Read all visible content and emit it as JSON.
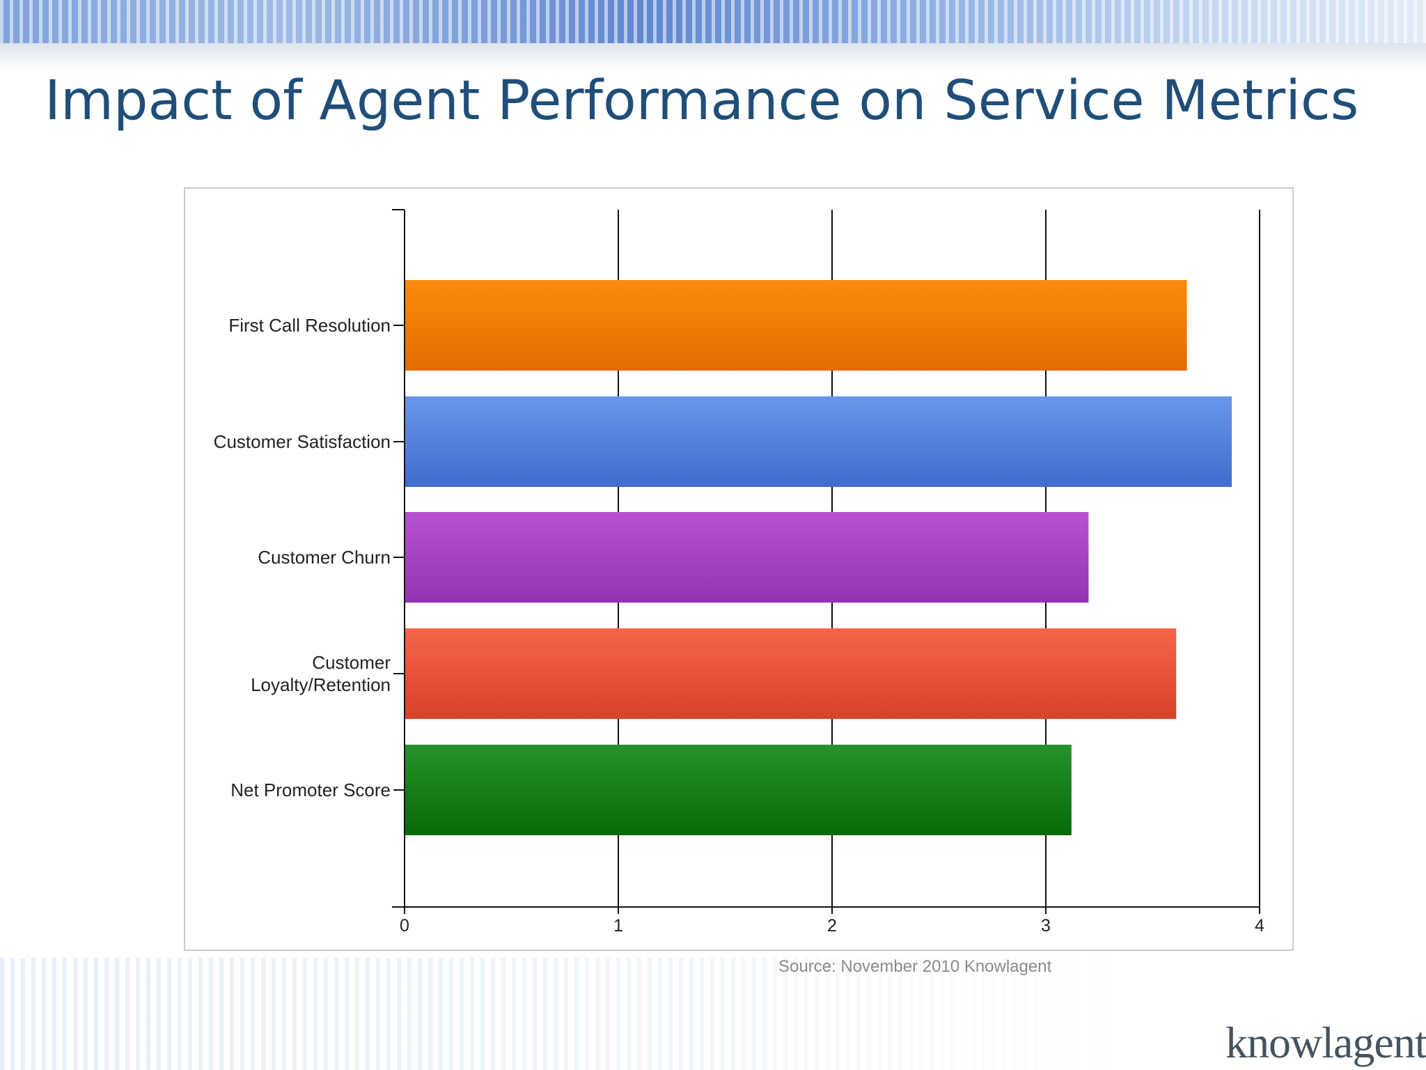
{
  "title": "Impact of Agent Performance on Service Metrics",
  "source": "Source: November 2010 Knowlagent",
  "logo": {
    "text": "knowlagent",
    "mark": "®"
  },
  "colors": {
    "title": "#1f4e79",
    "first_call_resolution": "#ee7a0a",
    "customer_satisfaction": "#5683dc",
    "customer_churn": "#a546c3",
    "customer_loyalty_retention": "#e85238",
    "net_promoter_score": "#1c8a1c"
  },
  "chart_data": {
    "type": "bar",
    "orientation": "horizontal",
    "categories": [
      [
        "First Call Resolution"
      ],
      [
        "Customer Satisfaction"
      ],
      [
        "Customer Churn"
      ],
      [
        "Customer",
        "Loyalty/Retention"
      ],
      [
        "Net Promoter Score"
      ]
    ],
    "values": [
      3.66,
      3.87,
      3.2,
      3.61,
      3.12
    ],
    "xlim": [
      0,
      4
    ],
    "xticks": [
      "0",
      "1",
      "2",
      "3",
      "4"
    ],
    "grid": true,
    "legend": false,
    "title": "",
    "xlabel": "",
    "ylabel": ""
  }
}
